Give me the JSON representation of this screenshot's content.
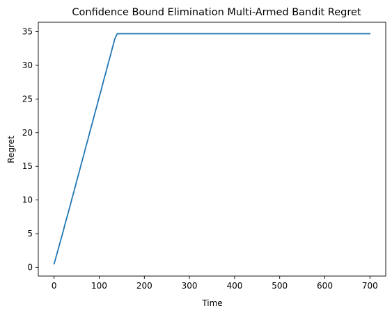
{
  "chart_data": {
    "type": "line",
    "title": "Confidence Bound Elimination Multi-Armed Bandit Regret",
    "xlabel": "Time",
    "ylabel": "Regret",
    "xlim": [
      -35,
      735
    ],
    "ylim": [
      -1.3,
      36.4
    ],
    "xticks": [
      0,
      100,
      200,
      300,
      400,
      500,
      600,
      700
    ],
    "yticks": [
      0,
      5,
      10,
      15,
      20,
      25,
      30,
      35
    ],
    "grid": false,
    "legend": "none",
    "series": [
      {
        "color": "#1f77b4",
        "x": [
          0,
          5,
          10,
          15,
          20,
          25,
          30,
          35,
          40,
          45,
          50,
          55,
          60,
          65,
          70,
          75,
          80,
          85,
          90,
          95,
          100,
          105,
          110,
          115,
          120,
          125,
          130,
          135,
          140,
          200,
          300,
          400,
          500,
          600,
          700
        ],
        "y": [
          0.5,
          1.7,
          2.9,
          4.1,
          5.3,
          6.6,
          7.8,
          9.0,
          10.3,
          11.5,
          12.8,
          14.0,
          15.3,
          16.5,
          17.8,
          19.0,
          20.3,
          21.5,
          22.8,
          24.0,
          25.3,
          26.5,
          27.8,
          29.0,
          30.3,
          31.5,
          32.8,
          34.0,
          34.7,
          34.7,
          34.7,
          34.7,
          34.7,
          34.7,
          34.7
        ]
      }
    ]
  }
}
